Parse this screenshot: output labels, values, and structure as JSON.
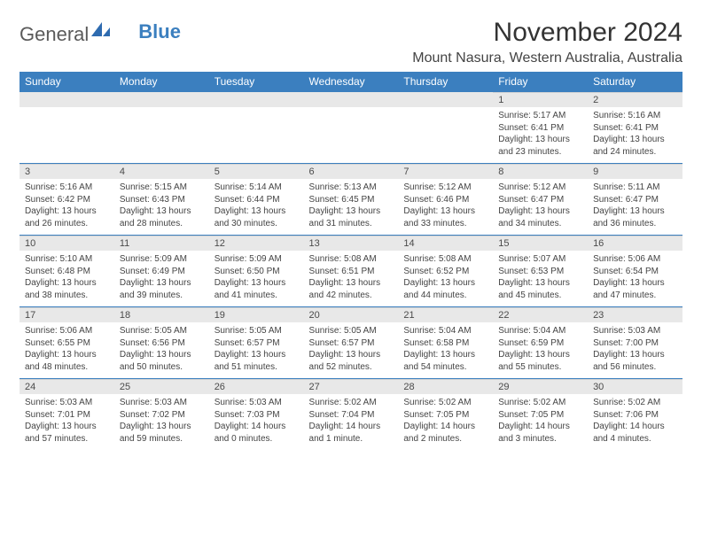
{
  "brand": {
    "word1": "General",
    "word2": "Blue"
  },
  "title": "November 2024",
  "location": "Mount Nasura, Western Australia, Australia",
  "colors": {
    "header_bg": "#3b7fbf",
    "header_text": "#ffffff",
    "daynum_bg": "#e8e8e8",
    "daynum_text": "#4a4a4a",
    "body_text": "#444444",
    "cell_border": "#3b7fbf",
    "logo_accent": "#2e6bb0"
  },
  "weekdays": [
    "Sunday",
    "Monday",
    "Tuesday",
    "Wednesday",
    "Thursday",
    "Friday",
    "Saturday"
  ],
  "first_weekday_index": 5,
  "days": [
    {
      "n": 1,
      "sunrise": "5:17 AM",
      "sunset": "6:41 PM",
      "daylight": "13 hours and 23 minutes."
    },
    {
      "n": 2,
      "sunrise": "5:16 AM",
      "sunset": "6:41 PM",
      "daylight": "13 hours and 24 minutes."
    },
    {
      "n": 3,
      "sunrise": "5:16 AM",
      "sunset": "6:42 PM",
      "daylight": "13 hours and 26 minutes."
    },
    {
      "n": 4,
      "sunrise": "5:15 AM",
      "sunset": "6:43 PM",
      "daylight": "13 hours and 28 minutes."
    },
    {
      "n": 5,
      "sunrise": "5:14 AM",
      "sunset": "6:44 PM",
      "daylight": "13 hours and 30 minutes."
    },
    {
      "n": 6,
      "sunrise": "5:13 AM",
      "sunset": "6:45 PM",
      "daylight": "13 hours and 31 minutes."
    },
    {
      "n": 7,
      "sunrise": "5:12 AM",
      "sunset": "6:46 PM",
      "daylight": "13 hours and 33 minutes."
    },
    {
      "n": 8,
      "sunrise": "5:12 AM",
      "sunset": "6:47 PM",
      "daylight": "13 hours and 34 minutes."
    },
    {
      "n": 9,
      "sunrise": "5:11 AM",
      "sunset": "6:47 PM",
      "daylight": "13 hours and 36 minutes."
    },
    {
      "n": 10,
      "sunrise": "5:10 AM",
      "sunset": "6:48 PM",
      "daylight": "13 hours and 38 minutes."
    },
    {
      "n": 11,
      "sunrise": "5:09 AM",
      "sunset": "6:49 PM",
      "daylight": "13 hours and 39 minutes."
    },
    {
      "n": 12,
      "sunrise": "5:09 AM",
      "sunset": "6:50 PM",
      "daylight": "13 hours and 41 minutes."
    },
    {
      "n": 13,
      "sunrise": "5:08 AM",
      "sunset": "6:51 PM",
      "daylight": "13 hours and 42 minutes."
    },
    {
      "n": 14,
      "sunrise": "5:08 AM",
      "sunset": "6:52 PM",
      "daylight": "13 hours and 44 minutes."
    },
    {
      "n": 15,
      "sunrise": "5:07 AM",
      "sunset": "6:53 PM",
      "daylight": "13 hours and 45 minutes."
    },
    {
      "n": 16,
      "sunrise": "5:06 AM",
      "sunset": "6:54 PM",
      "daylight": "13 hours and 47 minutes."
    },
    {
      "n": 17,
      "sunrise": "5:06 AM",
      "sunset": "6:55 PM",
      "daylight": "13 hours and 48 minutes."
    },
    {
      "n": 18,
      "sunrise": "5:05 AM",
      "sunset": "6:56 PM",
      "daylight": "13 hours and 50 minutes."
    },
    {
      "n": 19,
      "sunrise": "5:05 AM",
      "sunset": "6:57 PM",
      "daylight": "13 hours and 51 minutes."
    },
    {
      "n": 20,
      "sunrise": "5:05 AM",
      "sunset": "6:57 PM",
      "daylight": "13 hours and 52 minutes."
    },
    {
      "n": 21,
      "sunrise": "5:04 AM",
      "sunset": "6:58 PM",
      "daylight": "13 hours and 54 minutes."
    },
    {
      "n": 22,
      "sunrise": "5:04 AM",
      "sunset": "6:59 PM",
      "daylight": "13 hours and 55 minutes."
    },
    {
      "n": 23,
      "sunrise": "5:03 AM",
      "sunset": "7:00 PM",
      "daylight": "13 hours and 56 minutes."
    },
    {
      "n": 24,
      "sunrise": "5:03 AM",
      "sunset": "7:01 PM",
      "daylight": "13 hours and 57 minutes."
    },
    {
      "n": 25,
      "sunrise": "5:03 AM",
      "sunset": "7:02 PM",
      "daylight": "13 hours and 59 minutes."
    },
    {
      "n": 26,
      "sunrise": "5:03 AM",
      "sunset": "7:03 PM",
      "daylight": "14 hours and 0 minutes."
    },
    {
      "n": 27,
      "sunrise": "5:02 AM",
      "sunset": "7:04 PM",
      "daylight": "14 hours and 1 minute."
    },
    {
      "n": 28,
      "sunrise": "5:02 AM",
      "sunset": "7:05 PM",
      "daylight": "14 hours and 2 minutes."
    },
    {
      "n": 29,
      "sunrise": "5:02 AM",
      "sunset": "7:05 PM",
      "daylight": "14 hours and 3 minutes."
    },
    {
      "n": 30,
      "sunrise": "5:02 AM",
      "sunset": "7:06 PM",
      "daylight": "14 hours and 4 minutes."
    }
  ],
  "labels": {
    "sunrise": "Sunrise:",
    "sunset": "Sunset:",
    "daylight": "Daylight:"
  }
}
